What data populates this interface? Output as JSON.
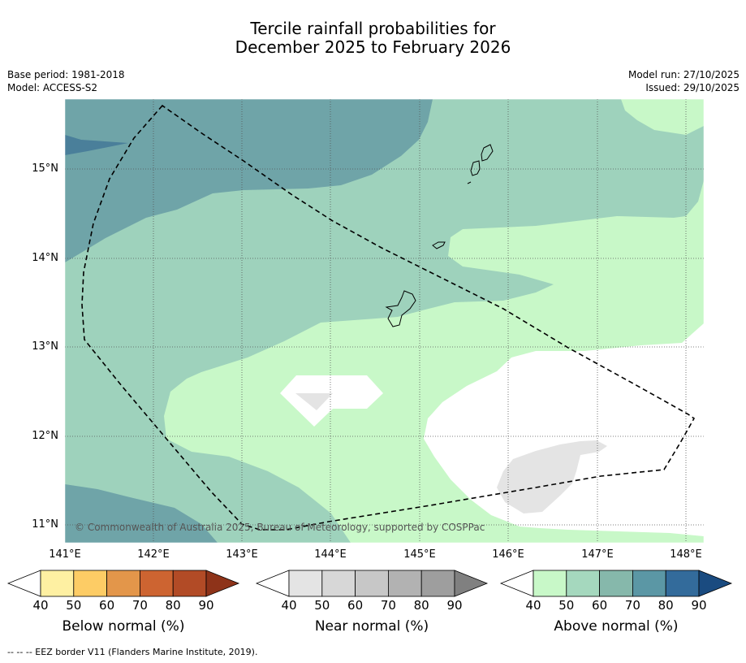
{
  "title": {
    "line1": "Tercile rainfall probabilities for",
    "line2": "December 2025 to February 2026"
  },
  "meta_left": {
    "base_period": "Base period: 1981-2018",
    "model": "Model: ACCESS-S2"
  },
  "meta_right": {
    "model_run": "Model run: 27/10/2025",
    "issued": "Issued: 29/10/2025"
  },
  "map": {
    "lat_labels": [
      "15°N",
      "14°N",
      "13°N",
      "12°N",
      "11°N"
    ],
    "lon_labels": [
      "141°E",
      "142°E",
      "143°E",
      "144°E",
      "145°E",
      "146°E",
      "147°E",
      "148°E"
    ],
    "copyright": "© Commonwealth of Australia 2025, Bureau of Meteorology, supported by COSPPac",
    "colors": {
      "above_50": "#c8f8c8",
      "above_60": "#9ed2bc",
      "above_70": "#6fa4a8",
      "above_80": "#4a7f9a",
      "near_50": "#e4e4e4"
    }
  },
  "legends": [
    {
      "title": "Below normal (%)",
      "ticks": [
        "40",
        "50",
        "60",
        "70",
        "80",
        "90"
      ],
      "colors": [
        "#ffffff",
        "#fef0a2",
        "#fdcc65",
        "#e3964a",
        "#cd6431",
        "#b24b26",
        "#8e3319"
      ]
    },
    {
      "title": "Near normal (%)",
      "ticks": [
        "40",
        "50",
        "60",
        "70",
        "80",
        "90"
      ],
      "colors": [
        "#ffffff",
        "#e4e4e4",
        "#d7d7d7",
        "#c7c7c7",
        "#b2b2b2",
        "#9e9e9e",
        "#808080"
      ]
    },
    {
      "title": "Above normal (%)",
      "ticks": [
        "40",
        "50",
        "60",
        "70",
        "80",
        "90"
      ],
      "colors": [
        "#ffffff",
        "#c8f8c8",
        "#a5d8be",
        "#86b8ab",
        "#5b97a5",
        "#336b9b",
        "#1a4b80"
      ]
    }
  ],
  "footnote": "--  --  -- EEZ border V11 (Flanders Marine Institute, 2019)."
}
